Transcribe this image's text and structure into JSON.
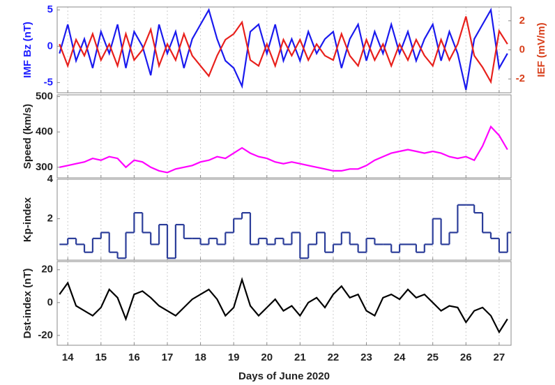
{
  "chart_data": [
    {
      "type": "line",
      "ylabel": "IMF Bz (nT)",
      "ylabel_color": "#1a1aff",
      "y2label": "IEF (mV/m)",
      "y2label_color": "#d8401c",
      "xlim": [
        13.68,
        27.36
      ],
      "xticks": [
        14,
        15,
        16,
        17,
        18,
        19,
        20,
        21,
        22,
        23,
        24,
        25,
        26,
        27
      ],
      "ylim": [
        -6.4,
        5.4
      ],
      "yticks": [
        -5,
        0,
        5
      ],
      "y2lim": [
        -2.95,
        2.95
      ],
      "y2ticks": [
        -2,
        0,
        2
      ],
      "grid": true,
      "x": [
        13.75,
        14,
        14.25,
        14.5,
        14.75,
        15,
        15.25,
        15.5,
        15.75,
        16,
        16.25,
        16.5,
        16.75,
        17,
        17.25,
        17.5,
        17.75,
        18,
        18.25,
        18.5,
        18.75,
        19,
        19.25,
        19.5,
        19.75,
        20,
        20.25,
        20.5,
        20.75,
        21,
        21.25,
        21.5,
        21.75,
        22,
        22.25,
        22.5,
        22.75,
        23,
        23.25,
        23.5,
        23.75,
        24,
        24.25,
        24.5,
        24.75,
        25,
        25.25,
        25.5,
        25.75,
        26,
        26.25,
        26.5,
        26.75,
        27,
        27.25
      ],
      "series": [
        {
          "color": "#1a1aee",
          "values": [
            -1,
            3,
            -2,
            1,
            -3,
            2,
            -1,
            3,
            -3,
            2,
            0,
            -4,
            3,
            -1,
            2,
            -3,
            1,
            3,
            5,
            1,
            -2,
            -3,
            -5.5,
            2,
            3,
            -1,
            3,
            -2,
            1,
            -2,
            2,
            -1,
            1,
            2,
            -3,
            1,
            3,
            -2,
            2,
            -1,
            3,
            -1,
            2,
            -2,
            1,
            3,
            -2,
            2,
            -1,
            -6,
            1,
            3,
            5,
            -3,
            -1
          ]
        },
        {
          "color": "#e8201c",
          "axis": "y2",
          "values": [
            0.4,
            -1.1,
            0.7,
            -0.4,
            1.1,
            -0.7,
            0.4,
            -1.1,
            1.1,
            -0.7,
            0,
            1.4,
            -1.1,
            0.4,
            -0.7,
            1.1,
            -0.4,
            -1.1,
            -1.8,
            -0.4,
            0.7,
            1.1,
            1.9,
            -0.7,
            -1.1,
            0.4,
            -1.1,
            0.7,
            -0.4,
            0.7,
            -0.7,
            0.4,
            -0.4,
            -0.7,
            1.1,
            -0.4,
            -1.1,
            0.7,
            -0.7,
            0.4,
            -1.1,
            0.4,
            -0.7,
            0.7,
            -0.4,
            -1.1,
            0.7,
            -0.7,
            0.4,
            2.3,
            -0.4,
            -1.2,
            -2.2,
            1.3,
            0.4
          ]
        }
      ]
    },
    {
      "type": "line",
      "ylabel": "Speed (km/s)",
      "xlim": [
        13.68,
        27.36
      ],
      "xticks": [
        14,
        15,
        16,
        17,
        18,
        19,
        20,
        21,
        22,
        23,
        24,
        25,
        26,
        27
      ],
      "ylim": [
        270,
        505
      ],
      "yticks": [
        300,
        400,
        500
      ],
      "grid": true,
      "x": [
        13.75,
        14,
        14.25,
        14.5,
        14.75,
        15,
        15.25,
        15.5,
        15.75,
        16,
        16.25,
        16.5,
        16.75,
        17,
        17.25,
        17.5,
        17.75,
        18,
        18.25,
        18.5,
        18.75,
        19,
        19.25,
        19.5,
        19.75,
        20,
        20.25,
        20.5,
        20.75,
        21,
        21.25,
        21.5,
        21.75,
        22,
        22.25,
        22.5,
        22.75,
        23,
        23.25,
        23.5,
        23.75,
        24,
        24.25,
        24.5,
        24.75,
        25,
        25.25,
        25.5,
        25.75,
        26,
        26.25,
        26.5,
        26.75,
        27,
        27.25
      ],
      "series": [
        {
          "color": "#ff00ff",
          "values": [
            300,
            305,
            310,
            315,
            325,
            320,
            330,
            325,
            300,
            320,
            315,
            300,
            290,
            285,
            295,
            300,
            305,
            315,
            320,
            330,
            325,
            340,
            355,
            340,
            330,
            325,
            315,
            310,
            315,
            310,
            305,
            300,
            295,
            290,
            290,
            295,
            295,
            305,
            320,
            330,
            340,
            345,
            350,
            345,
            340,
            345,
            340,
            330,
            325,
            330,
            320,
            360,
            415,
            390,
            350
          ]
        }
      ]
    },
    {
      "type": "step",
      "ylabel": "Kp-index",
      "xlim": [
        13.68,
        27.36
      ],
      "xticks": [
        14,
        15,
        16,
        17,
        18,
        19,
        20,
        21,
        22,
        23,
        24,
        25,
        26,
        27
      ],
      "ylim": [
        -0.1,
        4
      ],
      "yticks": [
        2,
        4
      ],
      "grid": true,
      "x": [
        13.75,
        14,
        14.25,
        14.5,
        14.75,
        15,
        15.25,
        15.5,
        15.75,
        16,
        16.25,
        16.5,
        16.75,
        17,
        17.25,
        17.5,
        17.75,
        18,
        18.25,
        18.5,
        18.75,
        19,
        19.25,
        19.5,
        19.75,
        20,
        20.25,
        20.5,
        20.75,
        21,
        21.25,
        21.5,
        21.75,
        22,
        22.25,
        22.5,
        22.75,
        23,
        23.25,
        23.5,
        23.75,
        24,
        24.25,
        24.5,
        24.75,
        25,
        25.25,
        25.5,
        25.75,
        26,
        26.25,
        26.5,
        26.75,
        27,
        27.25
      ],
      "series": [
        {
          "color": "#2c3e9a",
          "values": [
            0.7,
            1,
            0.7,
            0.3,
            1,
            1.3,
            0.3,
            0,
            1.3,
            2.3,
            1.3,
            0.7,
            1.7,
            0,
            1.7,
            1,
            1,
            0.7,
            1,
            0.7,
            1.3,
            2,
            2.3,
            0.7,
            1,
            0.7,
            1,
            0.7,
            1.3,
            0,
            0.7,
            1.3,
            0.3,
            0.7,
            1.3,
            0.7,
            0.3,
            1,
            0.7,
            0.7,
            0.3,
            0.7,
            0.7,
            0.3,
            0.7,
            2,
            0.7,
            1.3,
            2.7,
            2.7,
            2.3,
            1.3,
            1,
            0.3,
            1.3
          ]
        }
      ]
    },
    {
      "type": "line",
      "ylabel": "Dst-index (nT)",
      "xlabel": "Days of June 2020",
      "xlim": [
        13.68,
        27.36
      ],
      "xticks": [
        14,
        15,
        16,
        17,
        18,
        19,
        20,
        21,
        22,
        23,
        24,
        25,
        26,
        27
      ],
      "ylim": [
        -26,
        25
      ],
      "yticks": [
        -20,
        0,
        20
      ],
      "grid": true,
      "x": [
        13.75,
        14,
        14.25,
        14.5,
        14.75,
        15,
        15.25,
        15.5,
        15.75,
        16,
        16.25,
        16.5,
        16.75,
        17,
        17.25,
        17.5,
        17.75,
        18,
        18.25,
        18.5,
        18.75,
        19,
        19.25,
        19.5,
        19.75,
        20,
        20.25,
        20.5,
        20.75,
        21,
        21.25,
        21.5,
        21.75,
        22,
        22.25,
        22.5,
        22.75,
        23,
        23.25,
        23.5,
        23.75,
        24,
        24.25,
        24.5,
        24.75,
        25,
        25.25,
        25.5,
        25.75,
        26,
        26.25,
        26.5,
        26.75,
        27,
        27.25
      ],
      "series": [
        {
          "color": "#000000",
          "values": [
            5,
            12,
            -2,
            -5,
            -8,
            -3,
            8,
            3,
            -10,
            5,
            7,
            3,
            -2,
            -5,
            -8,
            -3,
            2,
            5,
            8,
            2,
            -8,
            -3,
            14,
            -2,
            -8,
            -3,
            2,
            -5,
            -2,
            -8,
            0,
            3,
            -3,
            5,
            10,
            3,
            5,
            -5,
            -8,
            3,
            5,
            2,
            8,
            3,
            5,
            0,
            -5,
            -2,
            -3,
            -12,
            -5,
            -3,
            -8,
            -18,
            -10
          ]
        }
      ]
    }
  ]
}
